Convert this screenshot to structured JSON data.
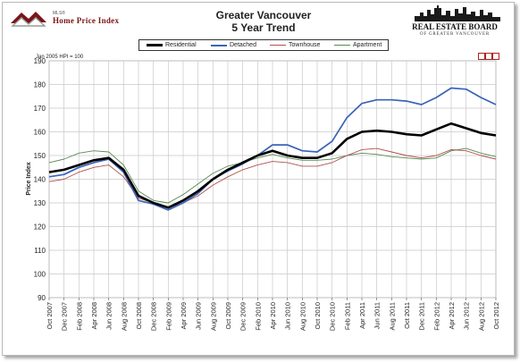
{
  "header": {
    "mls_small": "MLS®",
    "mls_brand": "Home Price Index",
    "title_line1": "Greater Vancouver",
    "title_line2": "5 Year Trend",
    "board_name": "REAL ESTATE BOARD",
    "board_sub": "OF GREATER VANCOUVER",
    "hpi_note": "Jan 2005 HPI = 100"
  },
  "colors": {
    "Residential": "#000000",
    "Detached": "#3a63b8",
    "Townhouse": "#b05050",
    "Apartment": "#5a8a55",
    "grid": "#c8c8c8",
    "brand": "#7a1418"
  },
  "chart_data": {
    "type": "line",
    "title": "Greater Vancouver\n5 Year Trend",
    "ylabel": "Price Index",
    "ylim": [
      90,
      190
    ],
    "yticks": [
      90,
      100,
      110,
      120,
      130,
      140,
      150,
      160,
      170,
      180,
      190
    ],
    "grid": true,
    "legend_position": "top-center",
    "x_tick_labels": [
      "Oct 2007",
      "Dec 2007",
      "Feb 2008",
      "Apr 2008",
      "Jun 2008",
      "Aug 2008",
      "Oct 2008",
      "Dec 2008",
      "Feb 2009",
      "Apr 2009",
      "Jun 2009",
      "Aug 2009",
      "Oct 2009",
      "Dec 2009",
      "Feb 2010",
      "Apr 2010",
      "Jun 2010",
      "Aug 2010",
      "Oct 2010",
      "Dec 2010",
      "Feb 2011",
      "Apr 2011",
      "Jun 2011",
      "Aug 2011",
      "Oct 2011",
      "Dec 2011",
      "Feb 2012",
      "Apr 2012",
      "Jun 2012",
      "Aug 2012",
      "Oct 2012"
    ],
    "series": [
      {
        "name": "Residential",
        "values": [
          143,
          144,
          146,
          148,
          149,
          144,
          133,
          130,
          128,
          131,
          135,
          140,
          144,
          147,
          150,
          152,
          150,
          149,
          149,
          151,
          157,
          160,
          160.5,
          160,
          159,
          158.5,
          161,
          163.5,
          161.5,
          159.5,
          158.5
        ]
      },
      {
        "name": "Detached",
        "values": [
          141,
          142,
          145,
          147,
          148.5,
          143,
          131,
          129.5,
          127,
          130,
          134,
          140,
          143.5,
          146.5,
          150,
          154.5,
          154.5,
          152,
          151.5,
          156,
          166,
          172,
          173.5,
          173.5,
          173,
          171.5,
          174.5,
          178.5,
          178,
          174.5,
          171.5
        ]
      },
      {
        "name": "Townhouse",
        "values": [
          139,
          140,
          143,
          145,
          146,
          141,
          132,
          130,
          128,
          130,
          133,
          137.5,
          141,
          144,
          146,
          147.5,
          147,
          145.5,
          145.5,
          147,
          150,
          152.5,
          153,
          151.5,
          150,
          149,
          150,
          152.5,
          152,
          150,
          148.5
        ]
      },
      {
        "name": "Apartment",
        "values": [
          147,
          148.5,
          151,
          152,
          151.5,
          146,
          135,
          131,
          130,
          133.5,
          138,
          142.5,
          145.5,
          147,
          149,
          150.5,
          149,
          148,
          148,
          148.5,
          150,
          151,
          150.5,
          149.5,
          149,
          148.5,
          149,
          152,
          153,
          151,
          149.5
        ]
      }
    ]
  }
}
